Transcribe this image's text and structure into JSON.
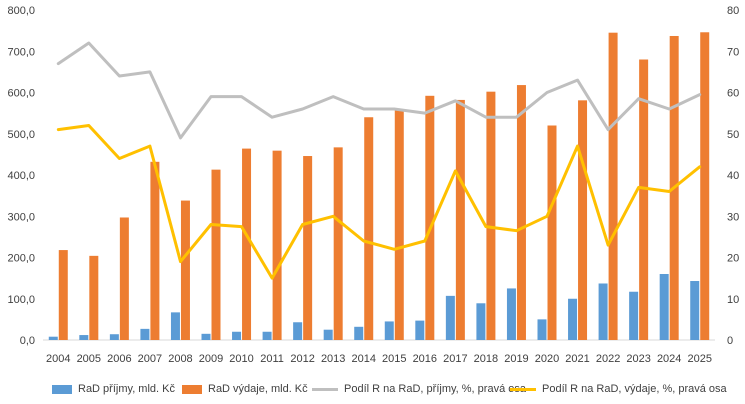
{
  "chart_data": {
    "type": "bar",
    "categories": [
      "2004",
      "2005",
      "2006",
      "2007",
      "2008",
      "2009",
      "2010",
      "2011",
      "2012",
      "2013",
      "2014",
      "2015",
      "2016",
      "2017",
      "2018",
      "2019",
      "2020",
      "2021",
      "2022",
      "2023",
      "2024",
      "2025"
    ],
    "series": [
      {
        "name": "RaD příjmy, mld. Kč",
        "type": "bar",
        "axis": "left",
        "color": "#5b9bd5",
        "values": [
          8,
          12,
          14,
          27,
          67,
          15,
          20,
          20,
          43,
          25,
          32,
          45,
          47,
          107,
          89,
          125,
          50,
          100,
          137,
          117,
          160,
          143
        ]
      },
      {
        "name": "RaD výdaje, mld. Kč",
        "type": "bar",
        "axis": "left",
        "color": "#ed7d31",
        "values": [
          218,
          204,
          297,
          432,
          338,
          413,
          464,
          459,
          446,
          467,
          540,
          557,
          592,
          582,
          602,
          618,
          520,
          581,
          745,
          680,
          737,
          746
        ]
      },
      {
        "name": "Podíl R na RaD, příjmy, %, pravá osa",
        "type": "line",
        "axis": "right",
        "color": "#bfbfbf",
        "values": [
          67,
          72,
          64,
          65,
          49,
          59,
          59,
          54,
          56,
          59,
          56,
          56,
          55,
          58,
          54,
          54,
          60,
          63,
          51,
          58.5,
          56,
          59.5
        ]
      },
      {
        "name": "Podíl R na RaD, výdaje, %, pravá osa",
        "type": "line",
        "axis": "right",
        "color": "#ffc000",
        "values": [
          51,
          52,
          44,
          47,
          19,
          28,
          27.5,
          15,
          28,
          30,
          24,
          22,
          24,
          41,
          27.5,
          26.5,
          30,
          47,
          23,
          37,
          36,
          42
        ]
      }
    ],
    "left_axis": {
      "ylim": [
        0,
        800
      ],
      "ticks": [
        "0,0",
        "100,0",
        "200,0",
        "300,0",
        "400,0",
        "500,0",
        "600,0",
        "700,0",
        "800,0"
      ]
    },
    "right_axis": {
      "ylim": [
        0,
        80
      ],
      "ticks": [
        "0",
        "10",
        "20",
        "30",
        "40",
        "50",
        "60",
        "70",
        "80"
      ]
    },
    "grid": false,
    "legend_position": "bottom"
  }
}
